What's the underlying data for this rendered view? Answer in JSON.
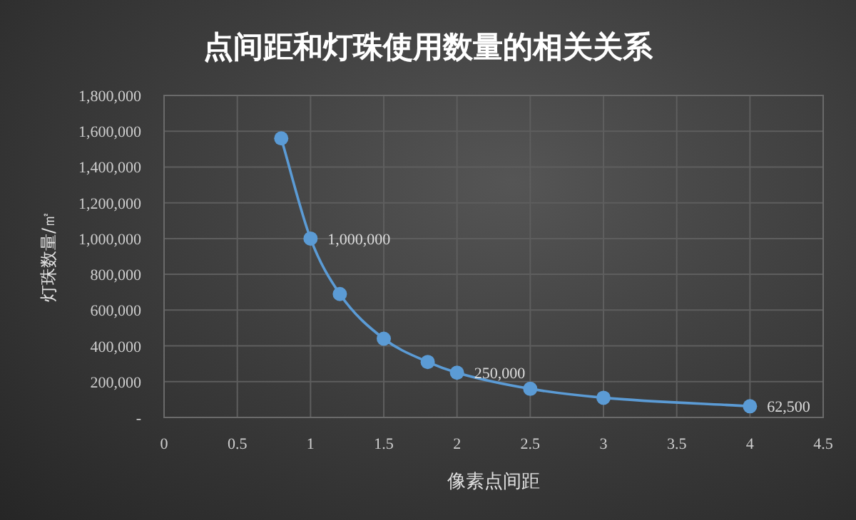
{
  "chart_data": {
    "type": "line",
    "title": "点间距和灯珠使用数量的相关关系",
    "xlabel": "像素点间距",
    "ylabel": "灯珠数量/㎡",
    "x": [
      0.8,
      1,
      1.2,
      1.5,
      1.8,
      2,
      2.5,
      3,
      4
    ],
    "series": [
      {
        "color": "#5b9bd5",
        "values": [
          1560000,
          1000000,
          690000,
          440000,
          310000,
          250000,
          160000,
          110000,
          62500
        ],
        "value_labels": [
          null,
          "1,000,000",
          null,
          null,
          null,
          "250,000",
          null,
          null,
          "62,500"
        ]
      }
    ],
    "xlim": [
      0,
      4.5
    ],
    "xticks": [
      0,
      0.5,
      1,
      1.5,
      2,
      2.5,
      3,
      3.5,
      4,
      4.5
    ],
    "ylim": [
      0,
      1800000
    ],
    "yticks": [
      {
        "value": 0,
        "label": "-"
      },
      {
        "value": 200000,
        "label": "200,000"
      },
      {
        "value": 400000,
        "label": "400,000"
      },
      {
        "value": 600000,
        "label": "600,000"
      },
      {
        "value": 800000,
        "label": "800,000"
      },
      {
        "value": 1000000,
        "label": "1,000,000"
      },
      {
        "value": 1200000,
        "label": "1,200,000"
      },
      {
        "value": 1400000,
        "label": "1,400,000"
      },
      {
        "value": 1600000,
        "label": "1,600,000"
      },
      {
        "value": 1800000,
        "label": "1,800,000"
      }
    ],
    "grid": true,
    "marker": "circle",
    "line_style": "solid"
  }
}
